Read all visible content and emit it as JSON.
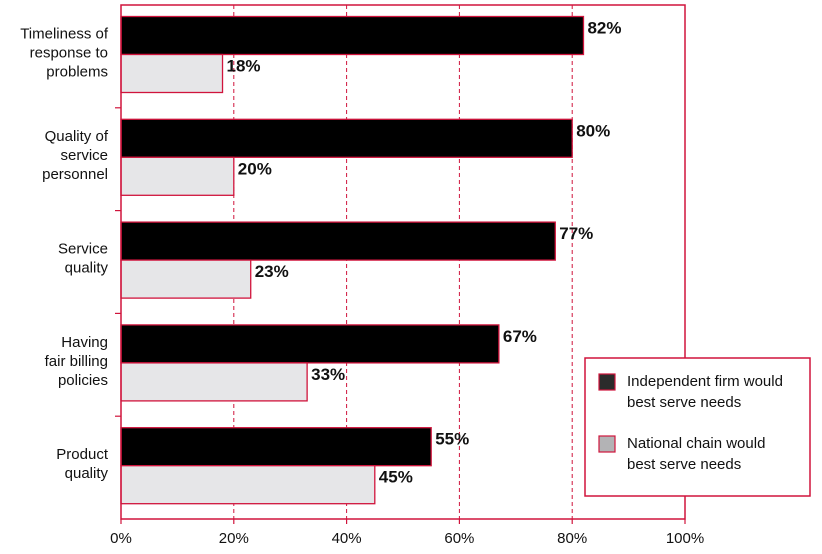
{
  "chart_data": {
    "type": "bar",
    "orientation": "horizontal",
    "categories": [
      [
        "Timeliness of",
        "response to",
        "problems"
      ],
      [
        "Quality of",
        "service",
        "personnel"
      ],
      [
        "Service",
        "quality"
      ],
      [
        "Having",
        "fair billing",
        "policies"
      ],
      [
        "Product",
        "quality"
      ]
    ],
    "series": [
      {
        "name": "Independent firm would best serve needs",
        "legend_lines": [
          "Independent firm would",
          "best serve needs"
        ],
        "values": [
          82,
          80,
          77,
          67,
          55
        ],
        "color": "#000000"
      },
      {
        "name": "National chain would best serve needs",
        "legend_lines": [
          "National chain would",
          "best serve needs"
        ],
        "values": [
          18,
          20,
          23,
          33,
          45
        ],
        "color": "#e6e6e8"
      }
    ],
    "value_suffix": "%",
    "xlim": [
      0,
      100
    ],
    "xticks": [
      "0%",
      "20%",
      "40%",
      "60%",
      "80%",
      "100%"
    ],
    "grid": "vertical dashed",
    "legend_position": "lower-right",
    "legend_swatch_colors": [
      "#2b2b2b",
      "#b3b3b5"
    ],
    "accent_color": "#d0143c"
  }
}
